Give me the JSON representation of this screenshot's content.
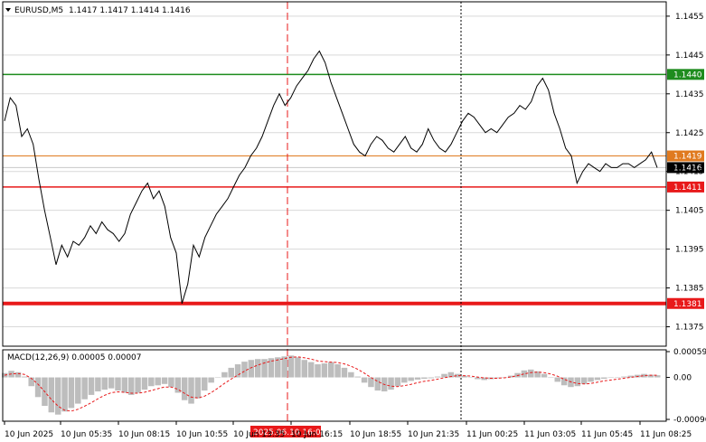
{
  "header": {
    "symbol": "EURUSD,M5",
    "ohlc": "1.1417 1.1417 1.1414 1.1416"
  },
  "macd": {
    "label": "MACD(12,26,9) 0.00005 0.00007",
    "ticks": [
      "0.00059",
      "0.00",
      "-0.00096"
    ]
  },
  "colors": {
    "price_line": "#000000",
    "green_level": "#1e8c1e",
    "red_level": "#e8191a",
    "orange_level": "#e07a1f",
    "macd_hist": "#bdbdbd",
    "macd_signal": "#e8191a",
    "grid": "#d9d9d9",
    "crosshair_red": "#e8191a"
  },
  "chart_data": {
    "type": "line",
    "title": "EURUSD,M5",
    "ylabel": "",
    "xlabel": "",
    "ylim": [
      1.137,
      1.1458
    ],
    "y_ticks": [
      "1.1455",
      "1.1445",
      "1.1435",
      "1.1425",
      "1.1415",
      "1.1405",
      "1.1395",
      "1.1385",
      "1.1375"
    ],
    "x_ticks": [
      "10 Jun 2025",
      "10 Jun 05:35",
      "10 Jun 08:15",
      "10 Jun 10:55",
      "10 Jun 13:35",
      "10 Jun 16:15",
      "10 Jun 18:55",
      "10 Jun 21:35",
      "11 Jun 00:25",
      "11 Jun 03:05",
      "11 Jun 05:45",
      "11 Jun 08:25"
    ],
    "crosshair_label": "2025.06.10 16:00",
    "levels": [
      {
        "value": 1.144,
        "label": "1.1440",
        "color": "green"
      },
      {
        "value": 1.1419,
        "label": "1.1419",
        "color": "orange"
      },
      {
        "value": 1.1411,
        "label": "1.1411",
        "color": "red"
      },
      {
        "value": 1.1381,
        "label": "1.1381",
        "color": "red-thick"
      }
    ],
    "current_price": {
      "value": 1.1416,
      "label": "1.1416"
    },
    "series": [
      {
        "values": [
          1.1428,
          1.1434,
          1.1432,
          1.1424,
          1.1426,
          1.1422,
          1.1413,
          1.1405,
          1.1398,
          1.1391,
          1.1396,
          1.1393,
          1.1397,
          1.1396,
          1.1398,
          1.1401,
          1.1399,
          1.1402,
          1.14,
          1.1399,
          1.1397,
          1.1399,
          1.1404,
          1.1407,
          1.141,
          1.1412,
          1.1408,
          1.141,
          1.1406,
          1.1398,
          1.1394,
          1.1381,
          1.1386,
          1.1396,
          1.1393,
          1.1398,
          1.1401,
          1.1404,
          1.1406,
          1.1408,
          1.1411,
          1.1414,
          1.1416,
          1.1419,
          1.1421,
          1.1424,
          1.1428,
          1.1432,
          1.1435,
          1.1432,
          1.1434,
          1.1437,
          1.1439,
          1.1441,
          1.1444,
          1.1446,
          1.1443,
          1.1438,
          1.1434,
          1.143,
          1.1426,
          1.1422,
          1.142,
          1.1419,
          1.1422,
          1.1424,
          1.1423,
          1.1421,
          1.142,
          1.1422,
          1.1424,
          1.1421,
          1.142,
          1.1422,
          1.1426,
          1.1423,
          1.1421,
          1.142,
          1.1422,
          1.1425,
          1.1428,
          1.143,
          1.1429,
          1.1427,
          1.1425,
          1.1426,
          1.1425,
          1.1427,
          1.1429,
          1.143,
          1.1432,
          1.1431,
          1.1433,
          1.1437,
          1.1439,
          1.1436,
          1.143,
          1.1426,
          1.1421,
          1.1419,
          1.1412,
          1.1415,
          1.1417,
          1.1416,
          1.1415,
          1.1417,
          1.1416,
          1.1416,
          1.1417,
          1.1417,
          1.1416,
          1.1417,
          1.1418,
          1.142,
          1.1416
        ]
      }
    ],
    "macd_histogram": [
      0.0001,
      0.00015,
      0.00012,
      2e-05,
      -0.0002,
      -0.00045,
      -0.00065,
      -0.0008,
      -0.00085,
      -0.00078,
      -0.0007,
      -0.0006,
      -0.0005,
      -0.0004,
      -0.00032,
      -0.00028,
      -0.00025,
      -0.0003,
      -0.00035,
      -0.0004,
      -0.00035,
      -0.00028,
      -0.0002,
      -0.00018,
      -0.00015,
      -0.00022,
      -0.00035,
      -0.00052,
      -0.0006,
      -0.00048,
      -0.0003,
      -0.00012,
      0.0,
      0.00012,
      0.00022,
      0.0003,
      0.00036,
      0.0004,
      0.00042,
      0.00042,
      0.00044,
      0.00046,
      0.00048,
      0.0005,
      0.00046,
      0.0004,
      0.00035,
      0.0003,
      0.00032,
      0.00035,
      0.0003,
      0.00022,
      0.00012,
      2e-05,
      -0.00012,
      -0.00022,
      -0.0003,
      -0.00032,
      -0.00028,
      -0.0002,
      -0.00012,
      -8e-05,
      -5e-05,
      -3e-05,
      -2e-05,
      2e-05,
      8e-05,
      0.00012,
      8e-05,
      4e-05,
      0.0,
      -4e-05,
      -6e-05,
      -4e-05,
      -2e-05,
      0.0,
      4e-05,
      0.0001,
      0.00016,
      0.00018,
      0.00014,
      8e-05,
      0.0,
      -0.0001,
      -0.00018,
      -0.00022,
      -0.0002,
      -0.00015,
      -0.0001,
      -6e-05,
      -3e-05,
      -1e-05,
      0.0,
      2e-05,
      4e-05,
      6e-05,
      8e-05,
      6e-05,
      5e-05
    ],
    "macd_signal": [
      5e-05,
      8e-05,
      9e-05,
      7e-05,
      -2e-05,
      -0.00015,
      -0.00032,
      -0.0005,
      -0.00065,
      -0.00075,
      -0.00077,
      -0.00073,
      -0.00066,
      -0.00058,
      -0.00049,
      -0.00041,
      -0.00035,
      -0.00033,
      -0.00034,
      -0.00036,
      -0.00036,
      -0.00034,
      -0.0003,
      -0.00026,
      -0.00022,
      -0.00022,
      -0.00027,
      -0.00036,
      -0.00045,
      -0.00047,
      -0.00043,
      -0.00035,
      -0.00025,
      -0.00014,
      -4e-05,
      5e-05,
      0.00014,
      0.00022,
      0.00028,
      0.00033,
      0.00037,
      0.0004,
      0.00043,
      0.00046,
      0.00047,
      0.00045,
      0.00042,
      0.00038,
      0.00036,
      0.00035,
      0.00034,
      0.00031,
      0.00026,
      0.00019,
      0.0001,
      0.0,
      -9e-05,
      -0.00016,
      -0.0002,
      -0.00021,
      -0.00019,
      -0.00016,
      -0.00012,
      -9e-05,
      -7e-05,
      -4e-05,
      -1e-05,
      2e-05,
      4e-05,
      4e-05,
      3e-05,
      1e-05,
      -1e-05,
      -2e-05,
      -2e-05,
      -1e-05,
      1e-05,
      4e-05,
      8e-05,
      0.00011,
      0.00012,
      0.00011,
      8e-05,
      3e-05,
      -4e-05,
      -0.0001,
      -0.00014,
      -0.00015,
      -0.00014,
      -0.00011,
      -8e-05,
      -6e-05,
      -4e-05,
      -2e-05,
      0.0,
      2e-05,
      4e-05,
      5e-05,
      5e-05
    ]
  }
}
